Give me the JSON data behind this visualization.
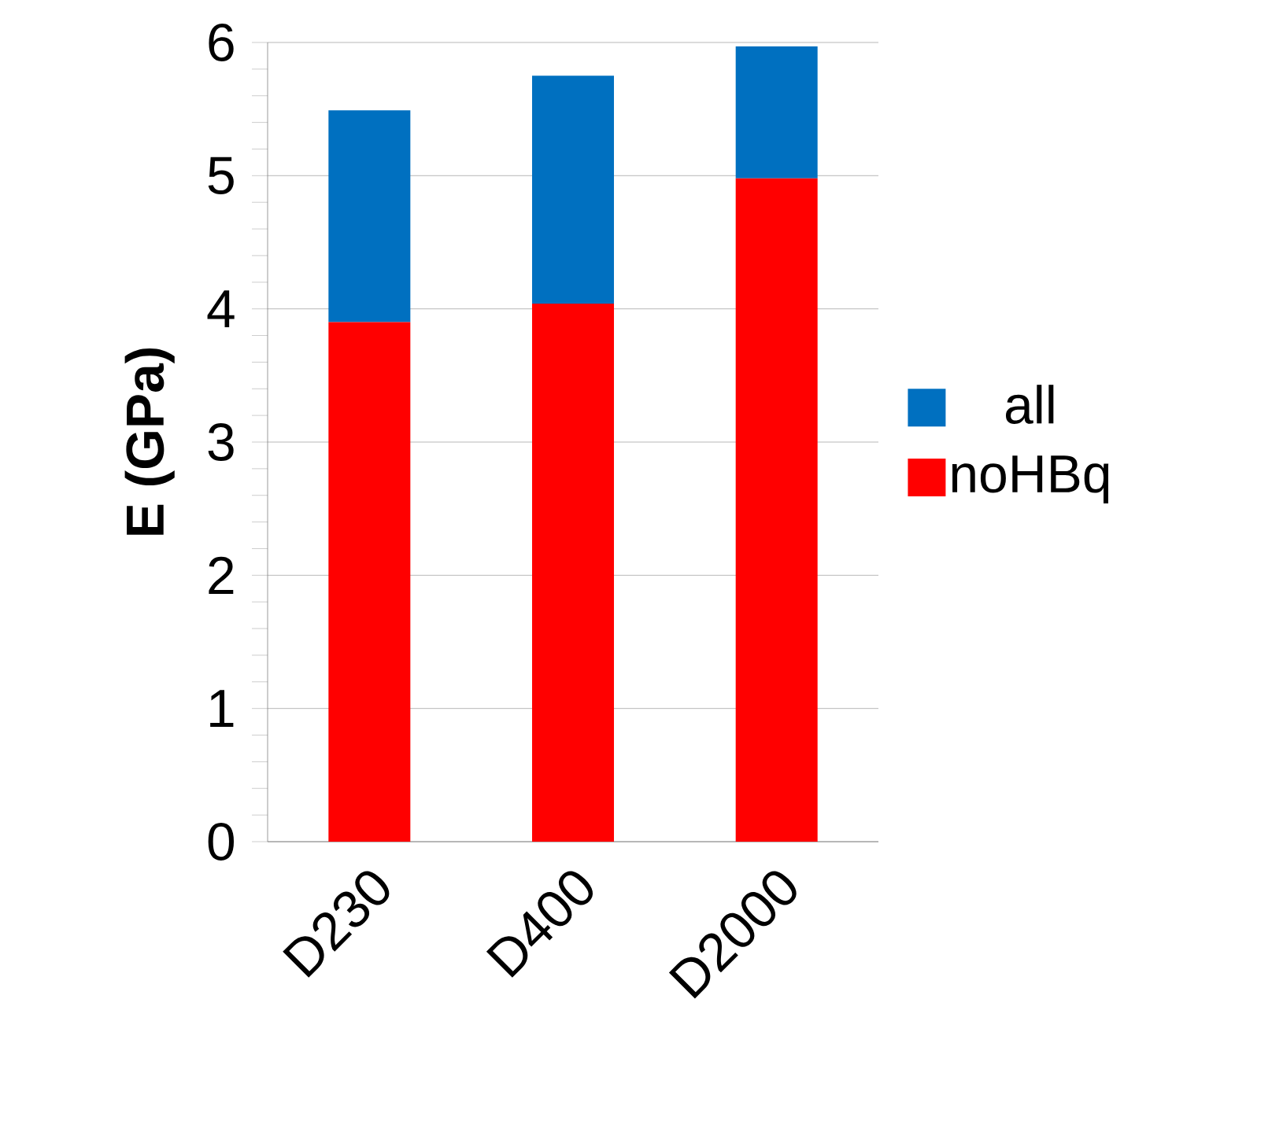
{
  "chart_data": {
    "type": "bar",
    "stacked": true,
    "ylabel": "E (GPa)",
    "categories": [
      "D230",
      "D400",
      "D2000"
    ],
    "series": [
      {
        "name": "noHBq",
        "color": "#ff0000",
        "values": [
          3.9,
          4.04,
          4.98
        ]
      },
      {
        "name": "all",
        "color": "#0070c0",
        "values": [
          1.59,
          1.71,
          0.99
        ]
      }
    ],
    "ylim": [
      0,
      6
    ],
    "yticks": [
      0,
      1,
      2,
      3,
      4,
      5,
      6
    ],
    "grid": "y",
    "legend": "right"
  }
}
